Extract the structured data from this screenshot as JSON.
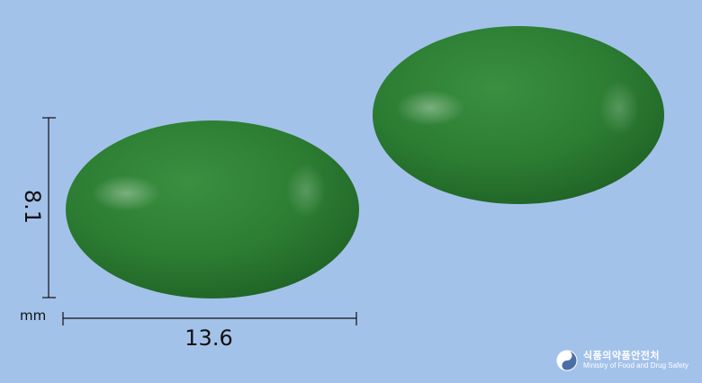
{
  "measurements": {
    "height": "8.1",
    "width": "13.6",
    "unit": "mm"
  },
  "logo": {
    "korean": "식품의약품안전처",
    "english": "Ministry of Food and Drug Safety"
  },
  "colors": {
    "background": "#a3c2ea",
    "pill": "#2a7a30"
  }
}
